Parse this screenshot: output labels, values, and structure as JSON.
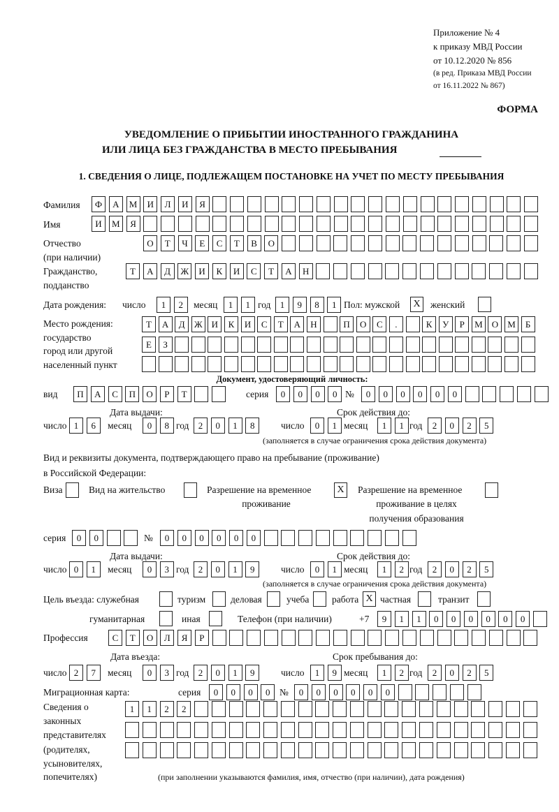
{
  "header": {
    "appendix": "Приложение № 4",
    "order": "к приказу МВД России",
    "order_date": "от 10.12.2020 № 856",
    "edition": "(в ред. Приказа МВД России",
    "edition_date": "от 16.11.2022 № 867)",
    "form_label": "ФОРМА",
    "title_line1": "УВЕДОМЛЕНИЕ О ПРИБЫТИИ ИНОСТРАННОГО ГРАЖДАНИНА",
    "title_line2": "ИЛИ ЛИЦА БЕЗ ГРАЖДАНСТВА В МЕСТО ПРЕБЫВАНИЯ",
    "section1": "1. СВЕДЕНИЯ О ЛИЦЕ, ПОДЛЕЖАЩЕМ ПОСТАНОВКЕ НА УЧЕТ ПО МЕСТУ ПРЕБЫВАНИЯ"
  },
  "person": {
    "surname_label": "Фамилия",
    "surname": "ФАМИЛИЯ",
    "name_label": "Имя",
    "name": "ИМЯ",
    "patronymic_label": "Отчество",
    "patronymic_note": "(при наличии)",
    "patronymic": "ОТЧЕСТВО",
    "citizenship_label": "Гражданство,",
    "citizenship_label2": "подданство",
    "citizenship": "ТАДЖИКИСТАН",
    "birth_label": "Дата рождения:",
    "day_label": "число",
    "month_label": "месяц",
    "year_label": "год",
    "birth_day": "12",
    "birth_month": "11",
    "birth_year": "1981",
    "sex_label": "Пол: мужской",
    "female_label": "женский",
    "male_mark": "X",
    "female_mark": "",
    "birthplace_label": "Место рождения:",
    "birthplace_label2": "государство",
    "birthplace_label3": "город или другой",
    "birthplace_label4": "населенный пункт",
    "birthplace_row1": "ТАДЖИКИСТАН ПОС. КУРМОМБ",
    "birthplace_row2": "ЕЗ",
    "birthplace_row3": ""
  },
  "id_document": {
    "heading": "Документ, удостоверяющий личность:",
    "type_label": "вид",
    "type": "ПАСПОРТ",
    "series_label": "серия",
    "series": "0000",
    "number_label": "№",
    "number": "000000",
    "issue_label": "Дата выдачи:",
    "valid_label": "Срок действия до:",
    "issue_day": "16",
    "issue_month": "08",
    "issue_year": "2018",
    "valid_day": "01",
    "valid_month": "11",
    "valid_year": "2025",
    "note": "(заполняется в случае ограничения срока действия документа)"
  },
  "residence_document": {
    "heading1": "Вид и реквизиты документа, подтверждающего право на пребывание (проживание)",
    "heading2": "в Российской Федерации:",
    "visa_label": "Виза",
    "visa_mark": "",
    "permit_label": "Вид на жительство",
    "permit_mark": "",
    "temp_label1": "Разрешение на временное",
    "temp_label2": "проживание",
    "temp_mark": "X",
    "edu_label1": "Разрешение на временное",
    "edu_label2": "проживание в целях",
    "edu_label3": "получения образования",
    "edu_mark": "",
    "series_label": "серия",
    "series": "00",
    "number_label": "№",
    "number": "000000",
    "issue_label": "Дата выдачи:",
    "valid_label": "Срок действия до:",
    "issue_day": "01",
    "issue_month": "03",
    "issue_year": "2019",
    "valid_day": "01",
    "valid_month": "12",
    "valid_year": "2025",
    "note": "(заполняется в случае ограничения срока действия документа)"
  },
  "purpose": {
    "label": "Цель въезда: служебная",
    "official": "",
    "tourism_label": "туризм",
    "tourism": "",
    "business_label": "деловая",
    "business": "",
    "study_label": "учеба",
    "study": "",
    "work_label": "работа",
    "work": "X",
    "private_label": "частная",
    "private": "",
    "transit_label": "транзит",
    "transit": "",
    "humanitarian_label": "гуманитарная",
    "humanitarian": "",
    "other_label": "иная",
    "other": "",
    "phone_label": "Телефон (при наличии)",
    "phone_prefix": "+7",
    "phone": "911000000"
  },
  "profession": {
    "label": "Профессия",
    "value": "СТОЛЯР"
  },
  "stay": {
    "entry_label": "Дата въезда:",
    "until_label": "Срок пребывания до:",
    "entry_day": "27",
    "entry_month": "03",
    "entry_year": "2019",
    "until_day": "19",
    "until_month": "12",
    "until_year": "2025"
  },
  "migration_card": {
    "label": "Миграционная карта:",
    "series_label": "серия",
    "series": "0000",
    "number_label": "№",
    "number": "000000"
  },
  "representatives": {
    "label": [
      "Сведения о",
      "законных",
      "представителях",
      "(родителях,",
      "усыновителях,",
      "попечителях)"
    ],
    "row1": "1122",
    "row2": "",
    "row3": "",
    "note": "(при заполнении указываются фамилия, имя, отчество (при наличии), дата рождения)"
  }
}
